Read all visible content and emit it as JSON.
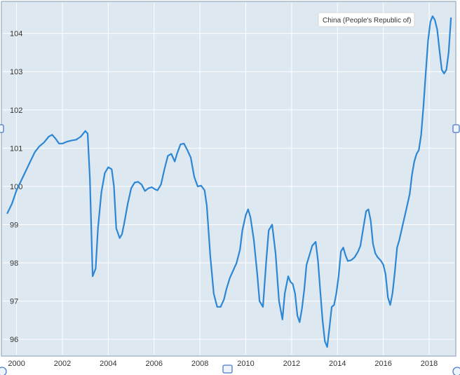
{
  "chart_data": {
    "type": "line",
    "title": "",
    "xlabel": "",
    "ylabel": "",
    "xlim": [
      1999.4,
      2019.1
    ],
    "ylim": [
      95.6,
      104.8
    ],
    "x_ticks": [
      "2000",
      "2002",
      "2004",
      "2006",
      "2008",
      "2010",
      "2012",
      "2014",
      "2016",
      "2018"
    ],
    "y_ticks": [
      "96",
      "97",
      "98",
      "99",
      "100",
      "101",
      "102",
      "103",
      "104"
    ],
    "grid": true,
    "legend": "none",
    "colors": {
      "plot_background": "#dde8f0",
      "line": "#2d87d4",
      "grid": "#ffffff",
      "frame": "#a9b9cc"
    },
    "tooltip": {
      "label": "China (People's Republic of)",
      "x": 2018.2,
      "y": 104.4
    },
    "series": [
      {
        "name": "China (People's Republic of)",
        "x": [
          1999.6,
          1999.8,
          2000.0,
          2000.2,
          2000.4,
          2000.6,
          2000.8,
          2001.0,
          2001.2,
          2001.4,
          2001.55,
          2001.7,
          2001.85,
          2002.0,
          2002.2,
          2002.4,
          2002.6,
          2002.8,
          2003.0,
          2003.1,
          2003.2,
          2003.32,
          2003.45,
          2003.55,
          2003.7,
          2003.85,
          2004.0,
          2004.15,
          2004.25,
          2004.35,
          2004.5,
          2004.6,
          2004.7,
          2004.85,
          2005.0,
          2005.15,
          2005.3,
          2005.45,
          2005.6,
          2005.75,
          2005.9,
          2006.05,
          2006.15,
          2006.3,
          2006.45,
          2006.6,
          2006.75,
          2006.9,
          2007.0,
          2007.15,
          2007.3,
          2007.45,
          2007.6,
          2007.75,
          2007.9,
          2008.05,
          2008.2,
          2008.3,
          2008.45,
          2008.6,
          2008.75,
          2008.9,
          2009.05,
          2009.15,
          2009.3,
          2009.45,
          2009.6,
          2009.75,
          2009.85,
          2010.0,
          2010.1,
          2010.2,
          2010.35,
          2010.5,
          2010.6,
          2010.75,
          2010.9,
          2011.0,
          2011.15,
          2011.3,
          2011.45,
          2011.6,
          2011.7,
          2011.85,
          2011.95,
          2012.05,
          2012.15,
          2012.25,
          2012.35,
          2012.45,
          2012.55,
          2012.65,
          2012.8,
          2012.9,
          2013.05,
          2013.15,
          2013.25,
          2013.35,
          2013.45,
          2013.55,
          2013.65,
          2013.75,
          2013.85,
          2013.95,
          2014.05,
          2014.15,
          2014.25,
          2014.35,
          2014.45,
          2014.6,
          2014.75,
          2014.9,
          2015.0,
          2015.15,
          2015.25,
          2015.35,
          2015.45,
          2015.55,
          2015.65,
          2015.75,
          2015.9,
          2016.0,
          2016.1,
          2016.2,
          2016.3,
          2016.4,
          2016.5,
          2016.6,
          2016.7,
          2016.85,
          2017.0,
          2017.15,
          2017.25,
          2017.35,
          2017.45,
          2017.55,
          2017.65,
          2017.75,
          2017.85,
          2017.95,
          2018.05,
          2018.15,
          2018.25,
          2018.35,
          2018.45,
          2018.55,
          2018.65,
          2018.75,
          2018.85,
          2018.95
        ],
        "y": [
          99.3,
          99.55,
          99.9,
          100.15,
          100.4,
          100.65,
          100.9,
          101.05,
          101.15,
          101.3,
          101.35,
          101.25,
          101.12,
          101.12,
          101.17,
          101.2,
          101.22,
          101.3,
          101.45,
          101.38,
          100.2,
          97.65,
          97.85,
          98.9,
          99.85,
          100.35,
          100.5,
          100.45,
          100.0,
          98.9,
          98.65,
          98.75,
          99.05,
          99.55,
          99.95,
          100.1,
          100.12,
          100.05,
          99.88,
          99.95,
          99.98,
          99.92,
          99.9,
          100.05,
          100.45,
          100.8,
          100.85,
          100.65,
          100.85,
          101.1,
          101.12,
          100.95,
          100.75,
          100.25,
          100.0,
          100.02,
          99.9,
          99.5,
          98.2,
          97.2,
          96.85,
          96.85,
          97.05,
          97.3,
          97.6,
          97.8,
          98.0,
          98.35,
          98.85,
          99.25,
          99.4,
          99.2,
          98.6,
          97.7,
          97.0,
          96.85,
          98.1,
          98.85,
          99.0,
          98.25,
          97.0,
          96.52,
          97.2,
          97.65,
          97.5,
          97.45,
          97.2,
          96.62,
          96.45,
          96.8,
          97.3,
          97.95,
          98.25,
          98.45,
          98.55,
          98.05,
          97.25,
          96.5,
          95.95,
          95.8,
          96.3,
          96.85,
          96.9,
          97.2,
          97.65,
          98.3,
          98.4,
          98.2,
          98.05,
          98.07,
          98.15,
          98.3,
          98.45,
          99.0,
          99.35,
          99.4,
          99.1,
          98.5,
          98.25,
          98.15,
          98.05,
          97.95,
          97.7,
          97.1,
          96.9,
          97.2,
          97.75,
          98.4,
          98.6,
          99.0,
          99.4,
          99.8,
          100.3,
          100.65,
          100.85,
          100.95,
          101.35,
          102.1,
          102.95,
          103.8,
          104.3,
          104.45,
          104.35,
          104.1,
          103.55,
          103.05,
          102.95,
          103.05,
          103.5,
          104.4
        ]
      }
    ]
  }
}
